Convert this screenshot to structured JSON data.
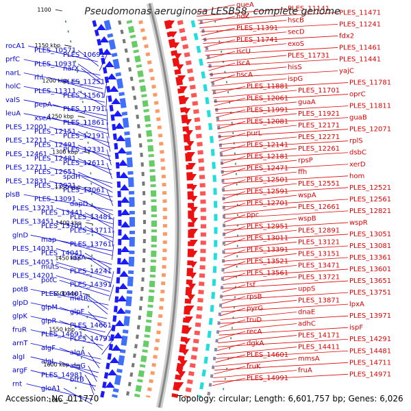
{
  "title": "Pseudomonas aeruginosa LESB58, complete genome",
  "footer": {
    "accession": "Accession: NC_011770",
    "summary": "Topology: circular; Length: 6,601,757 bp; Genes: 6,026"
  },
  "colors": {
    "forward": "#dd0000",
    "reverse": "#0000dd",
    "backbone": "#888888",
    "tick_marks": "#006600"
  },
  "scale_ticks": [
    "1100",
    "1150 kbp",
    "1200 kbp",
    "1250 kbp",
    "1300 kbp",
    "1350 kbp",
    "1400 kbp",
    "1450 kbp",
    "1500 kbp",
    "1550 kbp",
    "1600 kbp",
    "1650"
  ],
  "left_labels": [
    "rocA1",
    "PLES_10571",
    "PLES_10691",
    "prfC",
    "PLES_10931",
    "narX",
    "narL",
    "rhl",
    "PLES_11251",
    "holC",
    "PLES_11311",
    "PLES_11561",
    "valS",
    "pepA",
    "PLES_11791",
    "leuA",
    "xseA",
    "PLES_11861",
    "PLES_12001",
    "PLES_12151",
    "PLES_12191",
    "PLES_12211",
    "PLES_12491",
    "PLES_12331",
    "PLES_12461",
    "PLES_12481",
    "PLES_12611",
    "PLES_12711",
    "PLES_12651",
    "spdH",
    "PLES_12831",
    "PLES_12921",
    "PLES_13061",
    "plsB",
    "PLES_13091",
    "dapD",
    "PLES_13231",
    "PLES_13441",
    "PLES_13481",
    "PLES_13451",
    "PLES_13701",
    "PLES_13711",
    "glnD",
    "map",
    "PLES_13761",
    "PLES_14031",
    "PLES_14041",
    "rdxA",
    "PLES_14051",
    "mutS",
    "PLES_14241",
    "PLES_14201",
    "potC",
    "PLES_14391",
    "potB",
    "PLES_14401",
    "metR",
    "glpD",
    "glpM",
    "glpF",
    "glpK",
    "glpR",
    "PLES_14661",
    "fruR",
    "PLES_14691",
    "PLES_14791",
    "arnT",
    "algF",
    "algA",
    "algI",
    "algL",
    "algG",
    "argF",
    "PLES_14981",
    "bfrB",
    "rnt",
    "gloA1"
  ],
  "right_labels": [
    "queA",
    "PLES_11141",
    "PLES_11471",
    "ndk",
    "hscB",
    "PLES_11241",
    "PLES_11391",
    "secD",
    "fdx2",
    "PLES_11741",
    "exoS",
    "PLES_11461",
    "iscU",
    "PLES_11731",
    "PLES_11441",
    "iscA",
    "hisS",
    "yajC",
    "hscA",
    "ispG",
    "PLES_11781",
    "PLES_11881",
    "PLES_11701",
    "oprC",
    "PLES_12061",
    "guaA",
    "PLES_11811",
    "PLES_11991",
    "PLES_11921",
    "guaB",
    "PLES_12081",
    "PLES_12171",
    "PLES_12071",
    "purL",
    "PLES_12271",
    "rplS",
    "PLES_12141",
    "PLES_12261",
    "dsbC",
    "PLES_12181",
    "rpsP",
    "xerD",
    "PLES_12471",
    "ffh",
    "hom",
    "PLES_12501",
    "PLES_12551",
    "PLES_12521",
    "PLES_12591",
    "wspA",
    "PLES_12561",
    "PLES_12701",
    "PLES_12661",
    "PLES_12821",
    "ppc",
    "wspB",
    "wspR",
    "PLES_12951",
    "PLES_12891",
    "PLES_13051",
    "PLES_13011",
    "PLES_13121",
    "PLES_13081",
    "PLES_13391",
    "PLES_13151",
    "PLES_13361",
    "PLES_13521",
    "PLES_13471",
    "PLES_13601",
    "PLES_13561",
    "PLES_13721",
    "PLES_13651",
    "tsf",
    "uppS",
    "PLES_13751",
    "rpsB",
    "PLES_13871",
    "lpxA",
    "pyrG",
    "dnaE",
    "PLES_13971",
    "truD",
    "adhC",
    "ispF",
    "recA",
    "PLES_14171",
    "PLES_14291",
    "dgkA",
    "PLES_14411",
    "PLES_14481",
    "PLES_14601",
    "mmsA",
    "PLES_14711",
    "fruK",
    "fruA",
    "PLES_14971",
    "PLES_14991"
  ]
}
